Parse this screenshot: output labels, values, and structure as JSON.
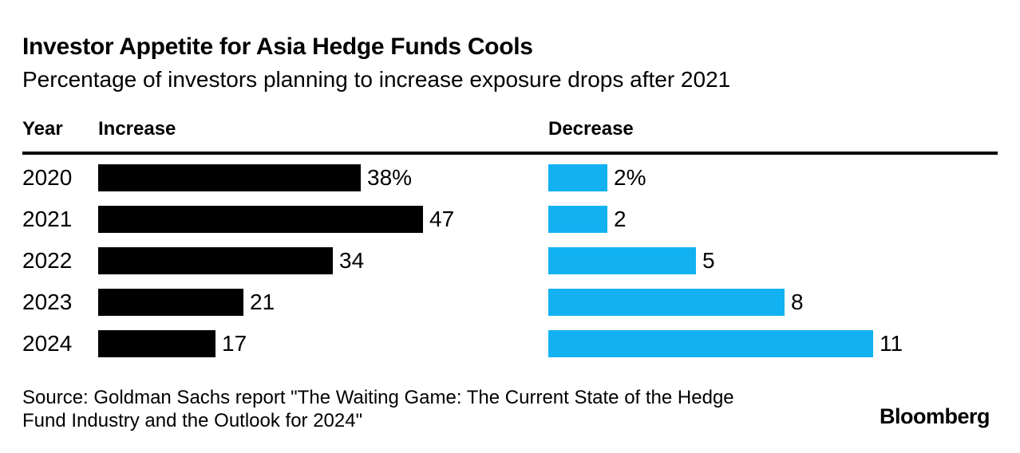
{
  "title": "Investor Appetite for Asia Hedge Funds Cools",
  "subtitle": "Percentage of investors planning to increase exposure drops after 2021",
  "columns": {
    "year": "Year",
    "increase": "Increase",
    "decrease": "Decrease"
  },
  "colors": {
    "background": "#ffffff",
    "text": "#000000",
    "rule": "#000000",
    "increase_bar": "#000000",
    "decrease_bar": "#12b2f2"
  },
  "chart_data": {
    "type": "bar",
    "orientation": "horizontal",
    "title": "Investor Appetite for Asia Hedge Funds Cools",
    "subtitle": "Percentage of investors planning to increase exposure drops after 2021",
    "categories": [
      "2020",
      "2021",
      "2022",
      "2023",
      "2024"
    ],
    "series": [
      {
        "name": "Increase",
        "values": [
          38,
          47,
          34,
          21,
          17
        ],
        "labels": [
          "38%",
          "47",
          "34",
          "21",
          "17"
        ],
        "color": "#000000"
      },
      {
        "name": "Decrease",
        "values": [
          2,
          2,
          5,
          8,
          11
        ],
        "labels": [
          "2%",
          "2",
          "5",
          "8",
          "11"
        ],
        "color": "#12b2f2"
      }
    ],
    "value_unit": "percent of investors",
    "grid": false,
    "legend_position": "column-headers",
    "scaling_note": "each column scaled independently to its own maximum value"
  },
  "source_text": "Source: Goldman Sachs report \"The Waiting Game: The Current State of the Hedge Fund Industry and the Outlook for 2024\"",
  "branding": {
    "logo": "Bloomberg"
  }
}
